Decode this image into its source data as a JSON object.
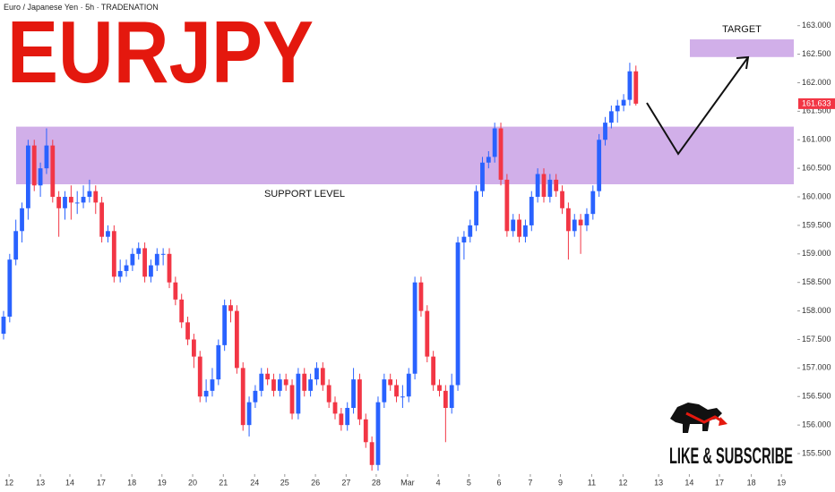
{
  "chart_data": {
    "type": "candlestick",
    "title": "EURJPY",
    "subtitle": "Euro / Japanese Yen · 5h · TRADENATION",
    "up_color": "#2962ff",
    "down_color": "#f23645",
    "zone_color": "#b57edc",
    "support_label": "SUPPORT LEVEL",
    "support_zone": [
      160.22,
      161.23
    ],
    "target_label": "TARGET",
    "target_zone": [
      162.45,
      162.76
    ],
    "cta": "LIKE & SUBSCRIBE",
    "xlim": [
      -0.58,
      129.3
    ],
    "ylim": [
      155.14,
      163.45
    ],
    "xticks": [
      {
        "value": 0.9,
        "label": "12"
      },
      {
        "value": 6,
        "label": "13"
      },
      {
        "value": 10.8,
        "label": "14"
      },
      {
        "value": 15.9,
        "label": "17"
      },
      {
        "value": 20.9,
        "label": "18"
      },
      {
        "value": 25.8,
        "label": "19"
      },
      {
        "value": 30.8,
        "label": "20"
      },
      {
        "value": 35.8,
        "label": "21"
      },
      {
        "value": 40.9,
        "label": "24"
      },
      {
        "value": 45.8,
        "label": "25"
      },
      {
        "value": 50.8,
        "label": "26"
      },
      {
        "value": 55.8,
        "label": "27"
      },
      {
        "value": 60.7,
        "label": "28"
      },
      {
        "value": 65.8,
        "label": "Mar"
      },
      {
        "value": 70.8,
        "label": "4"
      },
      {
        "value": 75.8,
        "label": "5"
      },
      {
        "value": 80.7,
        "label": "6"
      },
      {
        "value": 85.8,
        "label": "7"
      },
      {
        "value": 90.7,
        "label": "9"
      },
      {
        "value": 95.8,
        "label": "11"
      },
      {
        "value": 100.9,
        "label": "12"
      },
      {
        "value": 106.7,
        "label": "13"
      },
      {
        "value": 111.7,
        "label": "14"
      },
      {
        "value": 116.6,
        "label": "17"
      },
      {
        "value": 121.8,
        "label": "18"
      },
      {
        "value": 126.7,
        "label": "19"
      }
    ],
    "yticks": [
      {
        "value": 155.5,
        "label": "155.500"
      },
      {
        "value": 156,
        "label": "156.000"
      },
      {
        "value": 156.5,
        "label": "156.500"
      },
      {
        "value": 157,
        "label": "157.000"
      },
      {
        "value": 157.5,
        "label": "157.500"
      },
      {
        "value": 158,
        "label": "158.000"
      },
      {
        "value": 158.5,
        "label": "158.500"
      },
      {
        "value": 159,
        "label": "159.000"
      },
      {
        "value": 159.5,
        "label": "159.500"
      },
      {
        "value": 160,
        "label": "160.000"
      },
      {
        "value": 160.5,
        "label": "160.500"
      },
      {
        "value": 161,
        "label": "161.000"
      },
      {
        "value": 161.5,
        "label": "161.500"
      },
      {
        "value": 162,
        "label": "162.000"
      },
      {
        "value": 162.5,
        "label": "162.500"
      },
      {
        "value": 163,
        "label": "163.000"
      }
    ],
    "ohlc": [
      [
        157.6,
        158.0,
        157.5,
        157.9
      ],
      [
        157.9,
        159.0,
        157.8,
        158.9
      ],
      [
        158.9,
        159.6,
        158.8,
        159.4
      ],
      [
        159.4,
        159.9,
        159.2,
        159.8
      ],
      [
        159.8,
        161.0,
        159.6,
        160.9
      ],
      [
        160.9,
        161.0,
        160.1,
        160.2
      ],
      [
        160.2,
        160.6,
        160.0,
        160.5
      ],
      [
        160.5,
        161.2,
        160.4,
        160.9
      ],
      [
        160.9,
        161.0,
        159.9,
        160.0
      ],
      [
        160.0,
        160.1,
        159.3,
        159.8
      ],
      [
        159.8,
        160.1,
        159.6,
        160.0
      ],
      [
        160.0,
        160.2,
        159.6,
        159.9
      ],
      [
        159.9,
        160.1,
        159.7,
        159.9
      ],
      [
        159.9,
        160.2,
        159.8,
        160.0
      ],
      [
        160.0,
        160.3,
        159.9,
        160.1
      ],
      [
        160.1,
        160.2,
        159.7,
        159.9
      ],
      [
        159.9,
        160.0,
        159.2,
        159.3
      ],
      [
        159.3,
        159.5,
        159.2,
        159.4
      ],
      [
        159.4,
        159.5,
        158.5,
        158.6
      ],
      [
        158.6,
        158.9,
        158.5,
        158.7
      ],
      [
        158.7,
        158.9,
        158.6,
        158.8
      ],
      [
        158.8,
        159.1,
        158.7,
        159.0
      ],
      [
        159.0,
        159.2,
        158.9,
        159.1
      ],
      [
        159.1,
        159.2,
        158.5,
        158.6
      ],
      [
        158.6,
        158.9,
        158.5,
        158.8
      ],
      [
        158.8,
        159.1,
        158.7,
        159.0
      ],
      [
        159.0,
        159.1,
        158.8,
        159.0
      ],
      [
        159.0,
        159.1,
        158.4,
        158.5
      ],
      [
        158.5,
        158.6,
        158.1,
        158.2
      ],
      [
        158.2,
        158.3,
        157.7,
        157.8
      ],
      [
        157.8,
        157.9,
        157.4,
        157.5
      ],
      [
        157.5,
        157.6,
        157.0,
        157.2
      ],
      [
        157.2,
        157.3,
        156.4,
        156.5
      ],
      [
        156.5,
        156.8,
        156.4,
        156.6
      ],
      [
        156.6,
        157.0,
        156.5,
        156.8
      ],
      [
        156.8,
        157.5,
        156.7,
        157.4
      ],
      [
        157.4,
        158.2,
        157.3,
        158.1
      ],
      [
        158.1,
        158.2,
        157.8,
        158.0
      ],
      [
        158.0,
        158.1,
        156.9,
        157.0
      ],
      [
        157.0,
        157.1,
        155.9,
        156.0
      ],
      [
        156.0,
        156.5,
        155.8,
        156.4
      ],
      [
        156.4,
        156.7,
        156.3,
        156.6
      ],
      [
        156.6,
        157.0,
        156.5,
        156.9
      ],
      [
        156.9,
        157.0,
        156.7,
        156.8
      ],
      [
        156.8,
        156.9,
        156.5,
        156.6
      ],
      [
        156.6,
        156.9,
        156.5,
        156.8
      ],
      [
        156.8,
        156.9,
        156.6,
        156.7
      ],
      [
        156.7,
        156.8,
        156.1,
        156.2
      ],
      [
        156.2,
        157.0,
        156.1,
        156.9
      ],
      [
        156.9,
        157.0,
        156.5,
        156.6
      ],
      [
        156.6,
        156.9,
        156.5,
        156.8
      ],
      [
        156.8,
        157.1,
        156.7,
        157.0
      ],
      [
        157.0,
        157.1,
        156.6,
        156.7
      ],
      [
        156.7,
        156.8,
        156.3,
        156.4
      ],
      [
        156.4,
        156.5,
        156.1,
        156.2
      ],
      [
        156.2,
        156.3,
        155.9,
        156.0
      ],
      [
        156.0,
        156.4,
        155.9,
        156.3
      ],
      [
        156.3,
        157.0,
        156.2,
        156.8
      ],
      [
        156.8,
        156.9,
        156.0,
        156.1
      ],
      [
        156.1,
        156.2,
        155.6,
        155.7
      ],
      [
        155.7,
        155.8,
        155.2,
        155.3
      ],
      [
        155.3,
        156.5,
        155.2,
        156.4
      ],
      [
        156.4,
        156.9,
        156.3,
        156.8
      ],
      [
        156.8,
        156.9,
        156.6,
        156.7
      ],
      [
        156.7,
        156.8,
        156.4,
        156.5
      ],
      [
        156.5,
        156.7,
        156.3,
        156.5
      ],
      [
        156.5,
        157.0,
        156.4,
        156.9
      ],
      [
        156.9,
        158.6,
        156.8,
        158.5
      ],
      [
        158.5,
        158.6,
        157.9,
        158.0
      ],
      [
        158.0,
        158.1,
        157.1,
        157.2
      ],
      [
        157.2,
        157.3,
        156.6,
        156.7
      ],
      [
        156.7,
        156.8,
        156.5,
        156.6
      ],
      [
        156.6,
        156.7,
        155.7,
        156.3
      ],
      [
        156.3,
        156.9,
        156.2,
        156.7
      ],
      [
        156.7,
        159.3,
        156.6,
        159.2
      ],
      [
        159.2,
        159.4,
        158.9,
        159.3
      ],
      [
        159.3,
        159.6,
        159.2,
        159.5
      ],
      [
        159.5,
        160.2,
        159.4,
        160.1
      ],
      [
        160.1,
        160.7,
        160.0,
        160.6
      ],
      [
        160.6,
        160.8,
        160.5,
        160.7
      ],
      [
        160.7,
        161.3,
        160.6,
        161.2
      ],
      [
        161.2,
        161.3,
        160.2,
        160.3
      ],
      [
        160.3,
        160.4,
        159.3,
        159.4
      ],
      [
        159.4,
        159.7,
        159.3,
        159.6
      ],
      [
        159.6,
        159.7,
        159.2,
        159.3
      ],
      [
        159.3,
        159.6,
        159.2,
        159.5
      ],
      [
        159.5,
        160.1,
        159.4,
        160.0
      ],
      [
        160.0,
        160.5,
        159.9,
        160.4
      ],
      [
        160.4,
        160.5,
        159.9,
        160.0
      ],
      [
        160.0,
        160.4,
        159.9,
        160.3
      ],
      [
        160.3,
        160.4,
        160.0,
        160.1
      ],
      [
        160.1,
        160.2,
        159.7,
        159.8
      ],
      [
        159.8,
        159.9,
        158.9,
        159.4
      ],
      [
        159.4,
        159.7,
        159.3,
        159.6
      ],
      [
        159.6,
        159.7,
        159.0,
        159.5
      ],
      [
        159.5,
        159.8,
        159.4,
        159.7
      ],
      [
        159.7,
        160.2,
        159.6,
        160.1
      ],
      [
        160.1,
        161.1,
        160.0,
        161.0
      ],
      [
        161.0,
        161.4,
        160.9,
        161.3
      ],
      [
        161.3,
        161.6,
        161.2,
        161.5
      ],
      [
        161.5,
        161.7,
        161.3,
        161.6
      ],
      [
        161.6,
        161.8,
        161.5,
        161.7
      ],
      [
        161.7,
        162.35,
        161.6,
        162.2
      ],
      [
        162.2,
        162.3,
        161.6,
        161.633
      ]
    ]
  }
}
